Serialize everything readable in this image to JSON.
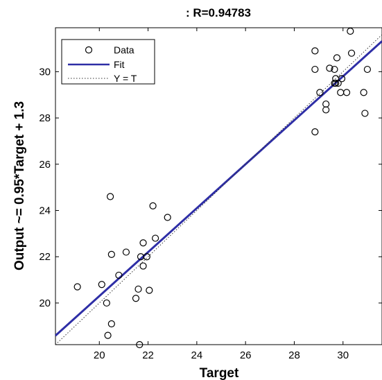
{
  "chart_data": {
    "type": "scatter",
    "title": ": R=0.94783",
    "xlabel": "Target",
    "ylabel": "Output ~= 0.95*Target + 1.3",
    "xlim": [
      18.2,
      31.6
    ],
    "ylim": [
      18.2,
      31.9
    ],
    "xticks": [
      20,
      22,
      24,
      26,
      28,
      30
    ],
    "yticks": [
      20,
      22,
      24,
      26,
      28,
      30
    ],
    "grid": false,
    "legend_position": "top-left",
    "legend": [
      "Data",
      "Fit",
      "Y = T"
    ],
    "series": [
      {
        "name": "Data",
        "kind": "markers",
        "color": "#000000",
        "points": [
          [
            19.1,
            20.7
          ],
          [
            20.1,
            20.8
          ],
          [
            20.3,
            20.0
          ],
          [
            20.35,
            18.6
          ],
          [
            20.5,
            19.1
          ],
          [
            20.45,
            24.6
          ],
          [
            20.5,
            22.1
          ],
          [
            20.8,
            21.2
          ],
          [
            21.1,
            22.2
          ],
          [
            21.5,
            20.2
          ],
          [
            21.6,
            20.6
          ],
          [
            21.65,
            18.2
          ],
          [
            21.7,
            22.0
          ],
          [
            21.8,
            21.6
          ],
          [
            21.8,
            22.6
          ],
          [
            21.95,
            22.0
          ],
          [
            22.05,
            20.55
          ],
          [
            22.2,
            24.2
          ],
          [
            22.3,
            22.8
          ],
          [
            22.8,
            23.7
          ],
          [
            28.85,
            30.9
          ],
          [
            28.85,
            30.1
          ],
          [
            28.85,
            27.4
          ],
          [
            29.05,
            29.1
          ],
          [
            29.3,
            28.35
          ],
          [
            29.3,
            28.6
          ],
          [
            29.45,
            30.15
          ],
          [
            29.65,
            30.1
          ],
          [
            29.65,
            29.5
          ],
          [
            29.7,
            29.5
          ],
          [
            29.7,
            29.7
          ],
          [
            29.75,
            30.6
          ],
          [
            29.8,
            29.5
          ],
          [
            29.9,
            29.1
          ],
          [
            29.95,
            29.7
          ],
          [
            30.15,
            29.1
          ],
          [
            30.3,
            31.75
          ],
          [
            30.35,
            30.8
          ],
          [
            30.85,
            29.1
          ],
          [
            30.9,
            28.2
          ],
          [
            31.0,
            30.1
          ]
        ]
      },
      {
        "name": "Fit",
        "kind": "line",
        "color": "#2e2ea6",
        "slope": 0.95,
        "intercept": 1.3
      },
      {
        "name": "Y = T",
        "kind": "dotted-line",
        "color": "#333333",
        "slope": 1,
        "intercept": 0
      }
    ]
  }
}
